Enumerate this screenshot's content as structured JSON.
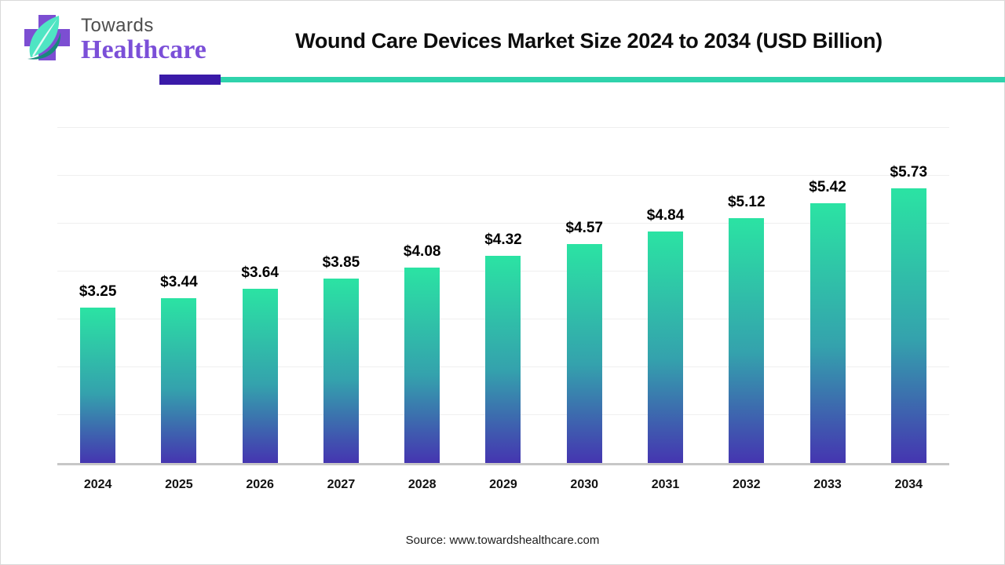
{
  "logo": {
    "towards": "Towards",
    "healthcare": "Healthcare"
  },
  "header": {
    "title": "Wound Care Devices Market Size 2024 to 2034 (USD Billion)"
  },
  "footer": {
    "source": "Source: www.towardshealthcare.com"
  },
  "colors": {
    "bar_gradient_top": "#2be3a3",
    "bar_gradient_mid": "#34a2ad",
    "bar_gradient_bottom": "#4535b0",
    "accent_purple": "#3a1aa8",
    "accent_teal": "#2fd3ac",
    "logo_purple": "#7b4fd8",
    "logo_cross_purple": "#7c4ed2",
    "logo_leaf_mint": "#4fe5c3",
    "logo_leaf_dark": "#17897b",
    "gridline": "#efefef",
    "axis_line": "#c7c7c7"
  },
  "chart_data": {
    "type": "bar",
    "title": "Wound Care Devices Market Size 2024 to 2034 (USD Billion)",
    "categories": [
      "2024",
      "2025",
      "2026",
      "2027",
      "2028",
      "2029",
      "2030",
      "2031",
      "2032",
      "2033",
      "2034"
    ],
    "values": [
      3.25,
      3.44,
      3.64,
      3.85,
      4.08,
      4.32,
      4.57,
      4.84,
      5.12,
      5.42,
      5.73
    ],
    "value_labels": [
      "$3.25",
      "$3.44",
      "$3.64",
      "$3.85",
      "$4.08",
      "$4.32",
      "$4.57",
      "$4.84",
      "$5.12",
      "$5.42",
      "$5.73"
    ],
    "xlabel": "",
    "ylabel": "",
    "unit": "USD Billion",
    "ylim": [
      0,
      7
    ],
    "grid": true,
    "gridline_step": 1,
    "legend": false
  }
}
